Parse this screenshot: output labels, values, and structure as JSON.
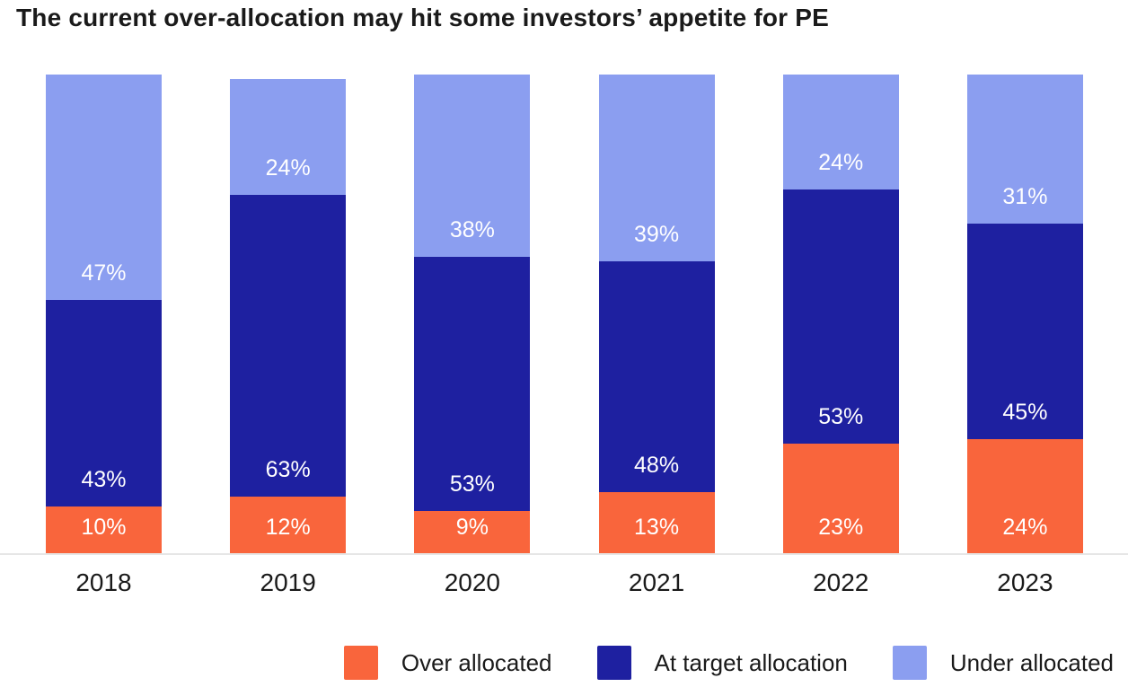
{
  "title": "The current over-allocation may hit some investors’ appetite for PE",
  "colors": {
    "over_allocated": "#F9653C",
    "at_target_allocation": "#1E20A0",
    "under_allocated": "#8B9EF0",
    "baseline": "#E6E6E6",
    "text": "#1A1A1A",
    "segment_label_text": "#FFFFFF"
  },
  "chart_data": {
    "type": "bar",
    "stacked": true,
    "title": "The current over-allocation may hit some investors’ appetite for PE",
    "categories": [
      "2018",
      "2019",
      "2020",
      "2021",
      "2022",
      "2023"
    ],
    "series": [
      {
        "name": "Over allocated",
        "color": "#F9653C",
        "values": [
          10,
          12,
          9,
          13,
          23,
          24
        ]
      },
      {
        "name": "At target allocation",
        "color": "#1E20A0",
        "values": [
          43,
          63,
          53,
          48,
          53,
          45
        ]
      },
      {
        "name": "Under allocated",
        "color": "#8B9EF0",
        "values": [
          47,
          24,
          38,
          39,
          24,
          31
        ]
      }
    ],
    "value_suffix": "%",
    "xlabel": "",
    "ylabel": "",
    "ylim": [
      0,
      100
    ],
    "grid": false,
    "data_labels": "inside-bottom",
    "legend_position": "bottom-right"
  }
}
